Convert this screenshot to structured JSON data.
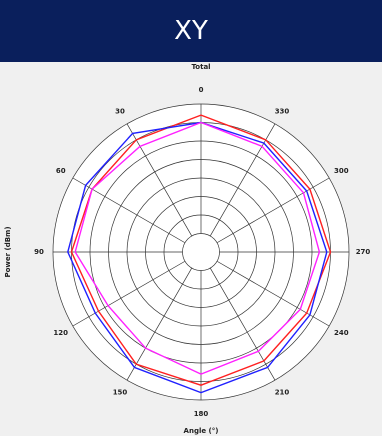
{
  "header": {
    "title": "XY"
  },
  "chart_data": {
    "type": "polar",
    "title": "Total",
    "angles": [
      0,
      30,
      60,
      90,
      120,
      150,
      180,
      210,
      240,
      270,
      300,
      330
    ],
    "xlabel": "Angle (°)",
    "ylabel": "Power (dBm)",
    "rlim": [
      0,
      8
    ],
    "rticks": [
      1,
      2,
      3,
      4,
      5,
      6,
      7,
      8
    ],
    "grid": true,
    "direction": "counterclockwise",
    "series": [
      {
        "color": "#ff2020",
        "values": [
          7.4,
          7.0,
          6.8,
          7.0,
          6.4,
          7.0,
          7.2,
          6.8,
          6.6,
          7.0,
          6.8,
          7.0
        ]
      },
      {
        "color": "#2020ff",
        "values": [
          7.0,
          7.4,
          7.2,
          7.2,
          6.6,
          7.2,
          7.6,
          7.2,
          6.8,
          6.8,
          6.6,
          6.8
        ]
      },
      {
        "color": "#ff20ff",
        "values": [
          7.0,
          6.6,
          6.8,
          6.8,
          5.8,
          6.0,
          6.6,
          6.2,
          6.2,
          6.4,
          6.4,
          6.6
        ]
      }
    ]
  }
}
